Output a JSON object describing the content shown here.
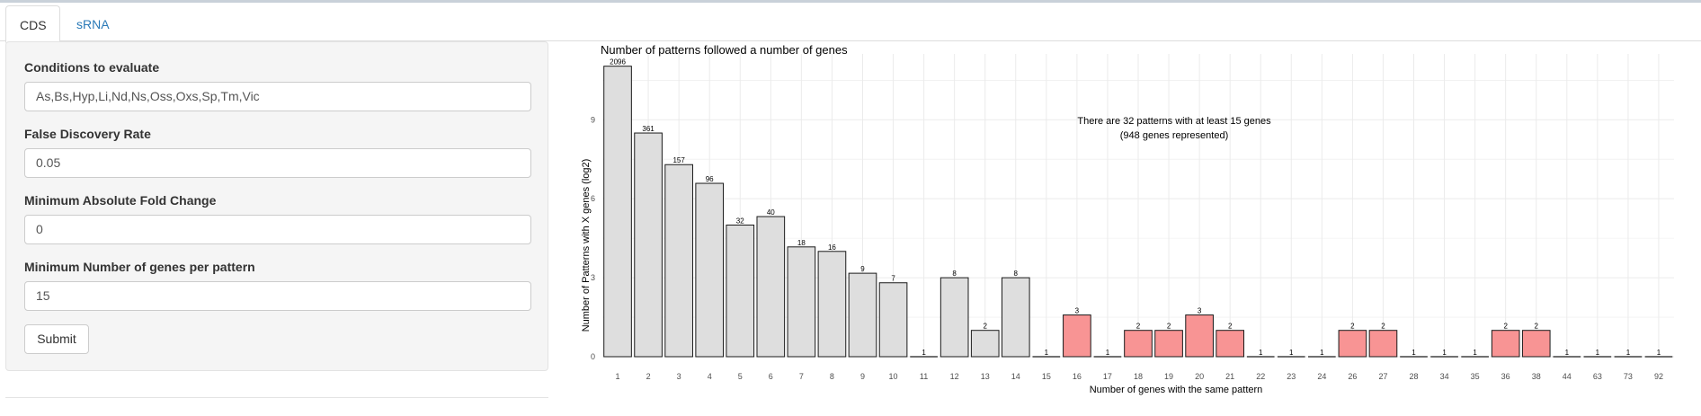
{
  "tabs": [
    {
      "label": "CDS",
      "active": true
    },
    {
      "label": "sRNA",
      "active": false
    }
  ],
  "form": {
    "conditions": {
      "label": "Conditions to evaluate",
      "value": "As,Bs,Hyp,Li,Nd,Ns,Oss,Oxs,Sp,Tm,Vic"
    },
    "fdr": {
      "label": "False Discovery Rate",
      "value": "0.05"
    },
    "fold_change": {
      "label": "Minimum Absolute Fold Change",
      "value": "0"
    },
    "min_genes": {
      "label": "Minimum Number of genes per pattern",
      "value": "15"
    },
    "submit_label": "Submit"
  },
  "chart_data": {
    "type": "bar",
    "title": "Number of patterns followed a number of genes",
    "xlabel": "Number of genes with the same pattern",
    "ylabel": "Number of Patterns with X genes (log2)",
    "y_scale": "log2",
    "ylim": [
      0,
      11.5
    ],
    "yticks": [
      0,
      3,
      6,
      9
    ],
    "grid": true,
    "annotation": [
      "There are 32 patterns with at least 15 genes",
      "(948 genes represented)"
    ],
    "categories": [
      "1",
      "2",
      "3",
      "4",
      "5",
      "6",
      "7",
      "8",
      "9",
      "10",
      "11",
      "12",
      "13",
      "14",
      "15",
      "16",
      "17",
      "18",
      "19",
      "20",
      "21",
      "22",
      "23",
      "24",
      "26",
      "27",
      "28",
      "34",
      "35",
      "36",
      "38",
      "44",
      "63",
      "73",
      "92"
    ],
    "values": [
      2096,
      361,
      157,
      96,
      32,
      40,
      18,
      16,
      9,
      7,
      1,
      8,
      2,
      8,
      1,
      3,
      1,
      2,
      2,
      3,
      2,
      1,
      1,
      1,
      2,
      2,
      1,
      1,
      1,
      2,
      2,
      1,
      1,
      1,
      1
    ],
    "colors": {
      "below_threshold": "#dedede",
      "at_least_threshold": "#f89494",
      "edge": "#1a1a1a",
      "grid": "#ebebeb"
    },
    "highlight_categories": [
      "16",
      "18",
      "19",
      "20",
      "21",
      "26",
      "27",
      "36",
      "38"
    ]
  }
}
